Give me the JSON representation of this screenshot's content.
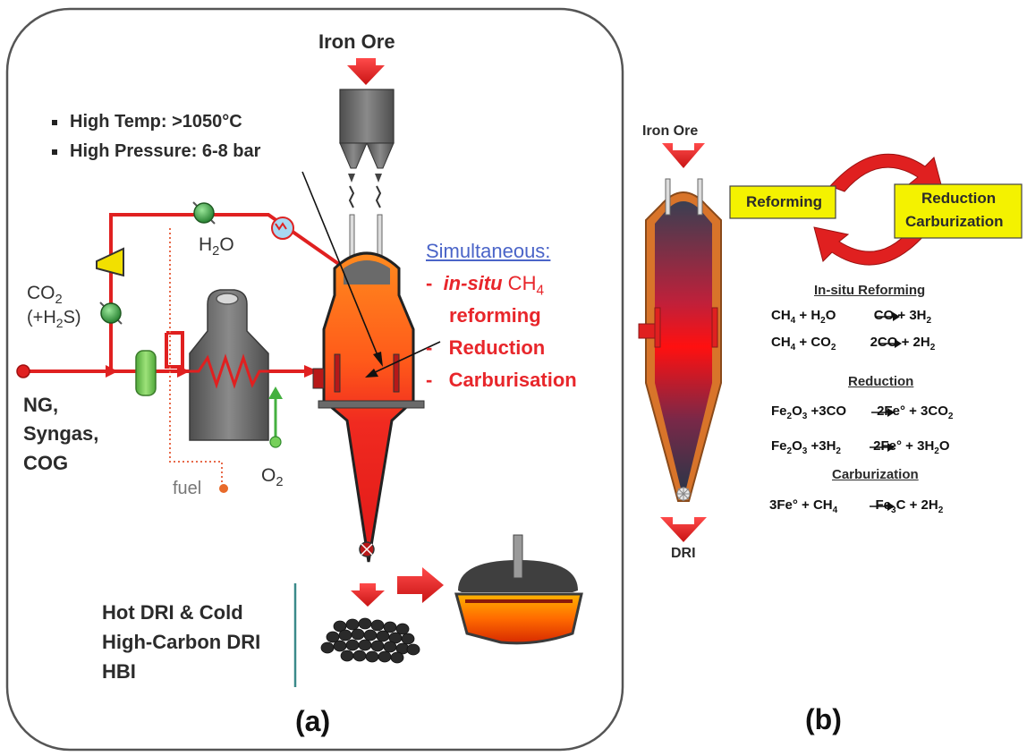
{
  "panel_a": {
    "iron_ore": "Iron Ore",
    "bullets": [
      "High Temp: >1050°C",
      "High Pressure: 6-8 bar"
    ],
    "h2o": "H",
    "h2o_sub": "2",
    "h2o_tail": "O",
    "co2": "CO",
    "co2_sub": "2",
    "h2s_open": "(+H",
    "h2s_sub": "2",
    "h2s_close": "S)",
    "feed": [
      "NG,",
      "Syngas,",
      "COG"
    ],
    "fuel": "fuel",
    "o2": "O",
    "o2_sub": "2",
    "simultaneous": "Simultaneous:",
    "process_lines": [
      {
        "dash": "-",
        "pre_italic": "in-situ",
        "text": " CH",
        "sub": "4"
      },
      {
        "dash": "",
        "pre_italic": "",
        "text": "reforming",
        "sub": ""
      },
      {
        "dash": "-",
        "pre_italic": "",
        "text": "Reduction",
        "sub": ""
      },
      {
        "dash": "-",
        "pre_italic": "",
        "text": "Carburisation",
        "sub": ""
      }
    ],
    "products": [
      "Hot DRI & Cold",
      "High-Carbon DRI",
      "HBI"
    ],
    "caption": "(a)"
  },
  "panel_b": {
    "iron_ore": "Iron Ore",
    "dri": "DRI",
    "reforming": "Reforming",
    "reduction": "Reduction",
    "carburization": "Carburization",
    "headers": {
      "insitu": "In-situ Reforming",
      "reduction": "Reduction",
      "carburization": "Carburization"
    },
    "caption": "(b)"
  },
  "colors": {
    "accent_red": "#e8262b",
    "link_blue": "#4a64c8",
    "label_yellow": "#f4f200",
    "pipe_red": "#e02020",
    "valve_green": "#2e9e3a",
    "vessel_gray": "#6b6b6b"
  }
}
